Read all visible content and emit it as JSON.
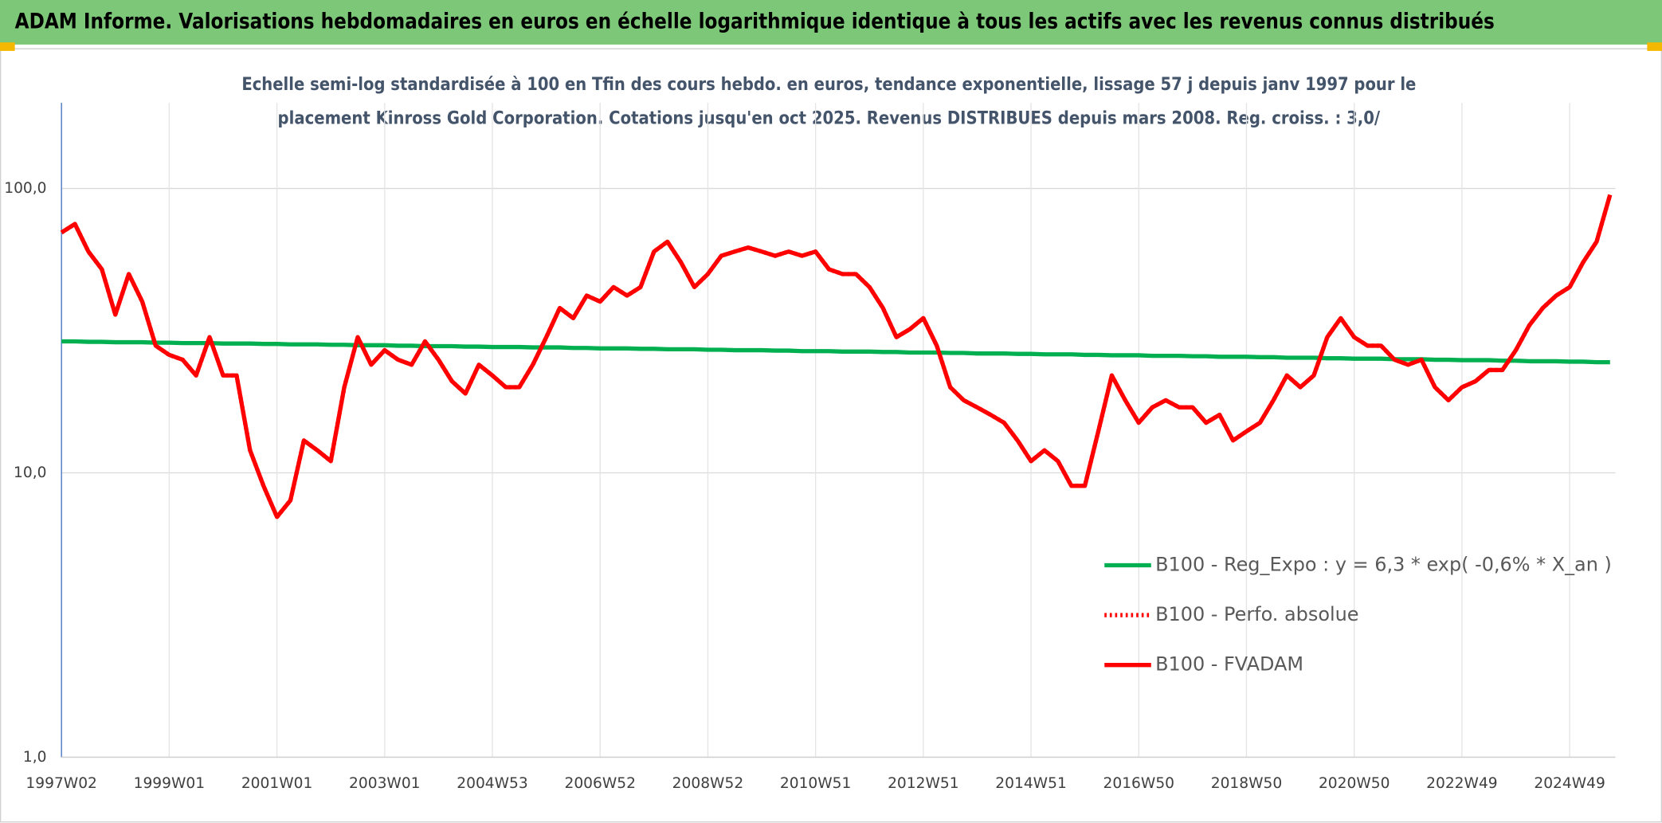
{
  "header": {
    "title": "ADAM Informe. Valorisations hebdomadaires en euros en échelle logarithmique identique à tous les actifs avec les revenus connus distribués"
  },
  "chart_data": {
    "type": "line",
    "title": [
      "Echelle semi-log standardisée à 100 en Tfin des cours hebdo. en euros, tendance exponentielle, lissage 57 j depuis janv 1997 pour le",
      "placement Kinross Gold Corporation. Cotations jusqu'en oct 2025. Revenus DISTRIBUES depuis mars 2008. Reg. croiss. : 3,0/"
    ],
    "log_scale": true,
    "grid": true,
    "ylim": [
      1,
      200
    ],
    "yticks": [
      {
        "value": 1,
        "label": "1,0"
      },
      {
        "value": 10,
        "label": "10,0"
      },
      {
        "value": 100,
        "label": "100,0"
      }
    ],
    "categories": [
      "1997W02",
      null,
      null,
      null,
      null,
      null,
      null,
      null,
      "1999W01",
      null,
      null,
      null,
      null,
      null,
      null,
      null,
      "2001W01",
      null,
      null,
      null,
      null,
      null,
      null,
      null,
      "2003W01",
      null,
      null,
      null,
      null,
      null,
      null,
      null,
      "2004W53",
      null,
      null,
      null,
      null,
      null,
      null,
      null,
      "2006W52",
      null,
      null,
      null,
      null,
      null,
      null,
      null,
      "2008W52",
      null,
      null,
      null,
      null,
      null,
      null,
      null,
      "2010W51",
      null,
      null,
      null,
      null,
      null,
      null,
      null,
      "2012W51",
      null,
      null,
      null,
      null,
      null,
      null,
      null,
      "2014W51",
      null,
      null,
      null,
      null,
      null,
      null,
      null,
      "2016W50",
      null,
      null,
      null,
      null,
      null,
      null,
      null,
      "2018W50",
      null,
      null,
      null,
      null,
      null,
      null,
      null,
      "2020W50",
      null,
      null,
      null,
      null,
      null,
      null,
      null,
      "2022W49",
      null,
      null,
      null,
      null,
      null,
      null,
      null,
      "2024W49",
      null,
      null,
      null
    ],
    "series": [
      {
        "name": "B100 - Reg_Expo : y = 6,3 * exp( -0,6% *  X_an )",
        "color": "#00b050",
        "style": "solid",
        "values": [
          29.0,
          29.0,
          28.9,
          28.9,
          28.8,
          28.8,
          28.8,
          28.7,
          28.7,
          28.6,
          28.6,
          28.6,
          28.5,
          28.5,
          28.5,
          28.4,
          28.4,
          28.3,
          28.3,
          28.3,
          28.2,
          28.2,
          28.1,
          28.1,
          28.1,
          28.0,
          28.0,
          27.9,
          27.9,
          27.9,
          27.8,
          27.8,
          27.7,
          27.7,
          27.7,
          27.6,
          27.6,
          27.6,
          27.5,
          27.5,
          27.4,
          27.4,
          27.4,
          27.3,
          27.3,
          27.2,
          27.2,
          27.2,
          27.1,
          27.1,
          27.0,
          27.0,
          27.0,
          26.9,
          26.9,
          26.8,
          26.8,
          26.8,
          26.7,
          26.7,
          26.7,
          26.6,
          26.6,
          26.5,
          26.5,
          26.5,
          26.4,
          26.4,
          26.3,
          26.3,
          26.3,
          26.2,
          26.2,
          26.1,
          26.1,
          26.1,
          26.0,
          26.0,
          25.9,
          25.9,
          25.9,
          25.8,
          25.8,
          25.8,
          25.7,
          25.7,
          25.6,
          25.6,
          25.6,
          25.5,
          25.5,
          25.4,
          25.4,
          25.4,
          25.3,
          25.3,
          25.2,
          25.2,
          25.2,
          25.1,
          25.1,
          25.1,
          25.0,
          25.0,
          24.9,
          24.9,
          24.9,
          24.8,
          24.8,
          24.7,
          24.7,
          24.7,
          24.6,
          24.6,
          24.5,
          24.5
        ]
      },
      {
        "name": "B100 - Perfo. absolue",
        "color": "#ff0000",
        "style": "dotted",
        "values": [
          70,
          75,
          60,
          52,
          36,
          50,
          40,
          28,
          26,
          25,
          22,
          30,
          22,
          22,
          12,
          9,
          7,
          8,
          13,
          12,
          11,
          20,
          30,
          24,
          27,
          25,
          24,
          29,
          25,
          21,
          19,
          24,
          22,
          20,
          20,
          24,
          30,
          38,
          35,
          42,
          40,
          45,
          42,
          45,
          60,
          65,
          55,
          45,
          50,
          58,
          60,
          62,
          60,
          58,
          60,
          58,
          60,
          52,
          50,
          50,
          45,
          38,
          30,
          32,
          35,
          28,
          20,
          18,
          17,
          16,
          15,
          13,
          11,
          12,
          11,
          9,
          9,
          14,
          22,
          18,
          15,
          17,
          18,
          17,
          17,
          15,
          16,
          13,
          14,
          15,
          18,
          22,
          20,
          22,
          30,
          35,
          30,
          28,
          28,
          25,
          24,
          25,
          20,
          18,
          20,
          21,
          23,
          23,
          27,
          33,
          38,
          42,
          45,
          55,
          65,
          95
        ]
      },
      {
        "name": "B100 - FVADAM",
        "color": "#ff0000",
        "style": "solid",
        "values": [
          70,
          75,
          60,
          52,
          36,
          50,
          40,
          28,
          26,
          25,
          22,
          30,
          22,
          22,
          12,
          9,
          7,
          8,
          13,
          12,
          11,
          20,
          30,
          24,
          27,
          25,
          24,
          29,
          25,
          21,
          19,
          24,
          22,
          20,
          20,
          24,
          30,
          38,
          35,
          42,
          40,
          45,
          42,
          45,
          60,
          65,
          55,
          45,
          50,
          58,
          60,
          62,
          60,
          58,
          60,
          58,
          60,
          52,
          50,
          50,
          45,
          38,
          30,
          32,
          35,
          28,
          20,
          18,
          17,
          16,
          15,
          13,
          11,
          12,
          11,
          9,
          9,
          14,
          22,
          18,
          15,
          17,
          18,
          17,
          17,
          15,
          16,
          13,
          14,
          15,
          18,
          22,
          20,
          22,
          30,
          35,
          30,
          28,
          28,
          25,
          24,
          25,
          20,
          18,
          20,
          21,
          23,
          23,
          27,
          33,
          38,
          42,
          45,
          55,
          65,
          95
        ]
      }
    ]
  }
}
